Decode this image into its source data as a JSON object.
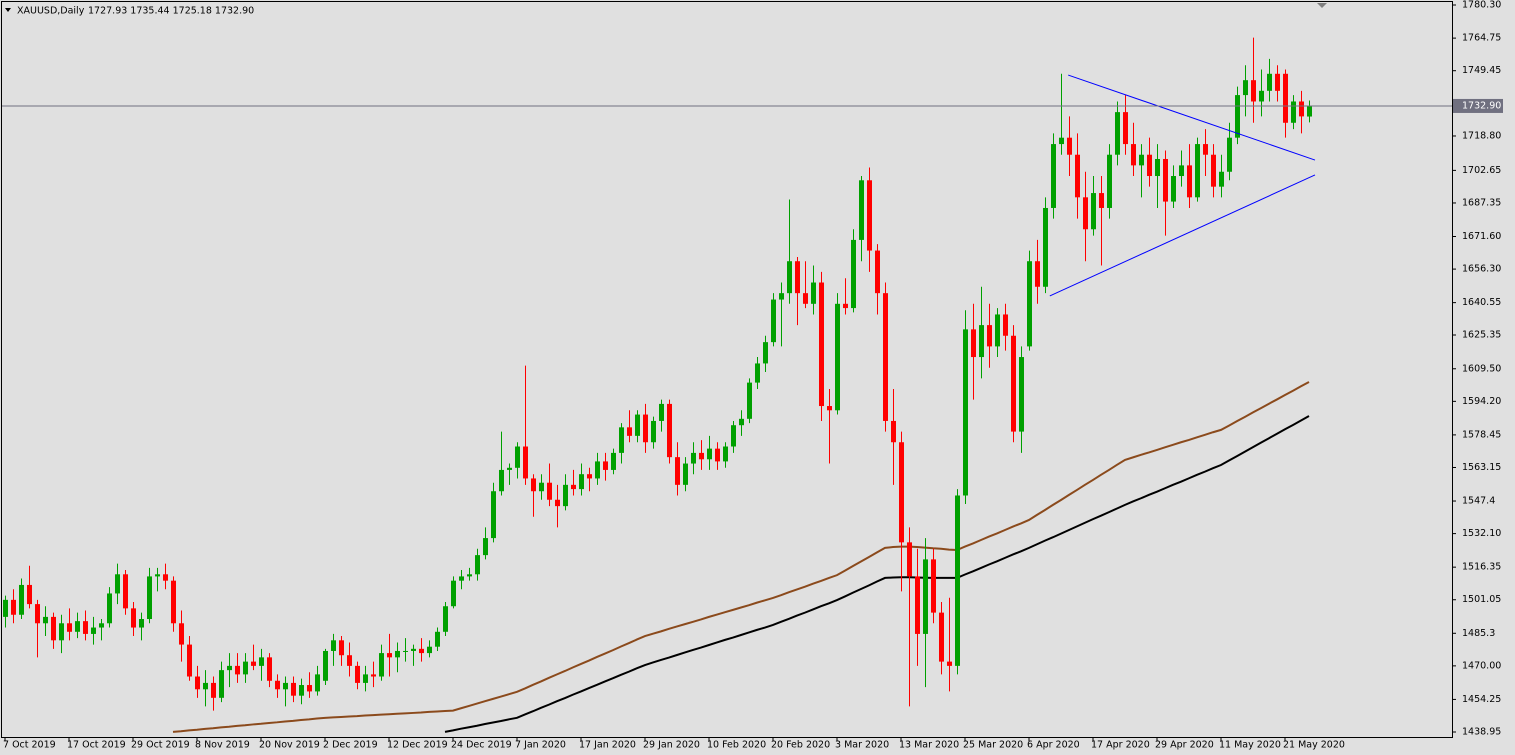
{
  "chart_data": {
    "type": "candlestick",
    "title": "XAUUSD,Daily",
    "header_values": "1727.93 1735.44 1725.18 1732.90",
    "up_color": "#00a000",
    "down_color": "#ff0000",
    "categories": [
      "7 Oct 2019",
      null,
      null,
      null,
      null,
      null,
      null,
      null,
      "17 Oct 2019",
      null,
      null,
      null,
      null,
      null,
      null,
      null,
      "29 Oct 2019",
      null,
      null,
      null,
      null,
      null,
      null,
      null,
      "8 Nov 2019",
      null,
      null,
      null,
      null,
      null,
      null,
      null,
      "20 Nov 2019",
      null,
      null,
      null,
      null,
      null,
      null,
      null,
      "2 Dec 2019",
      null,
      null,
      null,
      null,
      null,
      null,
      null,
      "12 Dec 2019",
      null,
      null,
      null,
      null,
      null,
      null,
      null,
      "24 Dec 2019",
      null,
      null,
      null,
      null,
      null,
      null,
      null,
      "7 Jan 2020",
      null,
      null,
      null,
      null,
      null,
      null,
      null,
      "17 Jan 2020",
      null,
      null,
      null,
      null,
      null,
      null,
      null,
      "29 Jan 2020",
      null,
      null,
      null,
      null,
      null,
      null,
      null,
      "10 Feb 2020",
      null,
      null,
      null,
      null,
      null,
      null,
      null,
      "20 Feb 2020",
      null,
      null,
      null,
      null,
      null,
      null,
      null,
      "3 Mar 2020",
      null,
      null,
      null,
      null,
      null,
      null,
      null,
      "13 Mar 2020",
      null,
      null,
      null,
      null,
      null,
      null,
      null,
      "25 Mar 2020",
      null,
      null,
      null,
      null,
      null,
      null,
      null,
      "6 Apr 2020",
      null,
      null,
      null,
      null,
      null,
      null,
      null,
      "17 Apr 2020",
      null,
      null,
      null,
      null,
      null,
      null,
      null,
      "29 Apr 2020",
      null,
      null,
      null,
      null,
      null,
      null,
      null,
      "11 May 2020",
      null,
      null,
      null,
      null,
      null,
      null,
      null,
      "21 May 2020",
      null,
      null,
      null
    ],
    "open": [
      1493,
      1501,
      1494,
      1508,
      1499,
      1490,
      1493,
      1482,
      1490,
      1486,
      1491,
      1485,
      1488,
      1490,
      1504,
      1513,
      1497,
      1488,
      1492,
      1512,
      1513,
      1510,
      1490,
      1480,
      1465,
      1459,
      1462,
      1455,
      1468,
      1470,
      1466,
      1472,
      1470,
      1474,
      1463,
      1459,
      1462,
      1456,
      1461,
      1458,
      1463,
      1477,
      1482,
      1475,
      1470,
      1462,
      1466,
      1465,
      1476,
      1474,
      1477,
      1477,
      1478,
      1476,
      1479,
      1486,
      1498,
      1510,
      1512,
      1513,
      1522,
      1530,
      1552,
      1562,
      1563,
      1573,
      1558,
      1552,
      1556,
      1548,
      1545,
      1555,
      1553,
      1560,
      1558,
      1566,
      1562,
      1570,
      1582,
      1578,
      1588,
      1575,
      1585,
      1593,
      1568,
      1555,
      1565,
      1570,
      1567,
      1572,
      1566,
      1573,
      1583,
      1586,
      1603,
      1612,
      1622,
      1642,
      1645,
      1660,
      1645,
      1640,
      1650,
      1592,
      1590,
      1640,
      1638,
      1670,
      1698,
      1665,
      1645,
      1585,
      1575,
      1528,
      1512,
      1485,
      1520,
      1495,
      1472,
      1470,
      1550,
      1628,
      1615,
      1630,
      1620,
      1635,
      1625,
      1580,
      1620,
      1660,
      1648,
      1685,
      1715,
      1718,
      1710,
      1690,
      1675,
      1692,
      1685,
      1710,
      1730,
      1715,
      1705,
      1710,
      1700,
      1708,
      1688,
      1700,
      1705,
      1690,
      1715,
      1710,
      1695,
      1702,
      1718,
      1738,
      1745,
      1735,
      1740,
      1748,
      1748,
      1725,
      1735,
      1727.93
    ],
    "high": [
      1503,
      1506,
      1511,
      1517,
      1501,
      1498,
      1495,
      1494,
      1497,
      1495,
      1496,
      1493,
      1492,
      1507,
      1518,
      1515,
      1500,
      1495,
      1516,
      1516,
      1518,
      1512,
      1496,
      1484,
      1470,
      1468,
      1465,
      1472,
      1476,
      1476,
      1476,
      1480,
      1478,
      1476,
      1466,
      1465,
      1465,
      1464,
      1467,
      1470,
      1478,
      1485,
      1484,
      1481,
      1472,
      1470,
      1472,
      1480,
      1485,
      1481,
      1483,
      1480,
      1483,
      1482,
      1488,
      1500,
      1512,
      1515,
      1516,
      1525,
      1535,
      1556,
      1580,
      1565,
      1575,
      1611,
      1560,
      1560,
      1565,
      1555,
      1560,
      1562,
      1565,
      1563,
      1570,
      1570,
      1572,
      1584,
      1590,
      1590,
      1593,
      1587,
      1595,
      1595,
      1575,
      1568,
      1575,
      1576,
      1578,
      1575,
      1575,
      1585,
      1590,
      1605,
      1615,
      1625,
      1645,
      1650,
      1689,
      1662,
      1660,
      1658,
      1655,
      1600,
      1645,
      1652,
      1675,
      1700,
      1704,
      1668,
      1650,
      1600,
      1580,
      1535,
      1525,
      1530,
      1525,
      1500,
      1502,
      1553,
      1637,
      1640,
      1648,
      1640,
      1638,
      1640,
      1630,
      1620,
      1665,
      1670,
      1690,
      1720,
      1748,
      1728,
      1720,
      1702,
      1700,
      1700,
      1715,
      1735,
      1738,
      1725,
      1715,
      1718,
      1715,
      1712,
      1705,
      1712,
      1715,
      1718,
      1722,
      1715,
      1710,
      1725,
      1742,
      1752,
      1765,
      1750,
      1755,
      1752,
      1750,
      1738,
      1740,
      1735.44
    ],
    "low": [
      1488,
      1490,
      1492,
      1497,
      1474,
      1484,
      1478,
      1476,
      1482,
      1483,
      1482,
      1480,
      1482,
      1488,
      1499,
      1494,
      1484,
      1482,
      1490,
      1505,
      1506,
      1486,
      1472,
      1463,
      1455,
      1451,
      1449,
      1453,
      1460,
      1462,
      1462,
      1468,
      1463,
      1460,
      1455,
      1451,
      1453,
      1452,
      1455,
      1456,
      1461,
      1470,
      1470,
      1465,
      1459,
      1458,
      1460,
      1463,
      1465,
      1467,
      1472,
      1470,
      1472,
      1474,
      1477,
      1484,
      1497,
      1506,
      1510,
      1510,
      1520,
      1528,
      1550,
      1555,
      1558,
      1555,
      1540,
      1548,
      1545,
      1535,
      1543,
      1550,
      1550,
      1552,
      1555,
      1557,
      1560,
      1565,
      1575,
      1575,
      1570,
      1572,
      1580,
      1565,
      1550,
      1552,
      1560,
      1562,
      1562,
      1562,
      1563,
      1570,
      1578,
      1584,
      1600,
      1608,
      1620,
      1620,
      1640,
      1630,
      1638,
      1635,
      1585,
      1565,
      1588,
      1635,
      1636,
      1660,
      1655,
      1635,
      1580,
      1555,
      1505,
      1451,
      1470,
      1460,
      1490,
      1466,
      1458,
      1466,
      1546,
      1595,
      1605,
      1610,
      1615,
      1618,
      1575,
      1570,
      1618,
      1640,
      1645,
      1680,
      1710,
      1700,
      1680,
      1660,
      1672,
      1658,
      1680,
      1705,
      1710,
      1700,
      1690,
      1695,
      1685,
      1672,
      1685,
      1695,
      1685,
      1688,
      1700,
      1690,
      1690,
      1698,
      1715,
      1728,
      1725,
      1728,
      1735,
      1735,
      1718,
      1722,
      1720,
      1725.18
    ],
    "close": [
      1501,
      1494,
      1508,
      1499,
      1490,
      1493,
      1482,
      1490,
      1486,
      1491,
      1485,
      1488,
      1490,
      1504,
      1513,
      1497,
      1488,
      1492,
      1512,
      1513,
      1510,
      1490,
      1480,
      1465,
      1459,
      1462,
      1455,
      1468,
      1470,
      1466,
      1472,
      1470,
      1474,
      1463,
      1459,
      1462,
      1456,
      1461,
      1458,
      1466,
      1477,
      1482,
      1475,
      1470,
      1462,
      1466,
      1465,
      1476,
      1474,
      1477,
      1477,
      1478,
      1476,
      1479,
      1486,
      1498,
      1510,
      1512,
      1513,
      1522,
      1530,
      1552,
      1562,
      1563,
      1573,
      1558,
      1552,
      1556,
      1548,
      1545,
      1555,
      1553,
      1560,
      1558,
      1566,
      1562,
      1570,
      1582,
      1578,
      1588,
      1575,
      1585,
      1593,
      1568,
      1555,
      1565,
      1570,
      1567,
      1572,
      1566,
      1573,
      1583,
      1586,
      1603,
      1612,
      1622,
      1642,
      1645,
      1660,
      1645,
      1640,
      1650,
      1592,
      1590,
      1640,
      1638,
      1670,
      1698,
      1665,
      1645,
      1585,
      1575,
      1528,
      1512,
      1485,
      1520,
      1495,
      1472,
      1470,
      1550,
      1628,
      1615,
      1630,
      1620,
      1635,
      1625,
      1580,
      1615,
      1660,
      1648,
      1685,
      1715,
      1718,
      1710,
      1690,
      1675,
      1692,
      1685,
      1710,
      1730,
      1715,
      1705,
      1710,
      1700,
      1708,
      1688,
      1700,
      1705,
      1690,
      1715,
      1710,
      1695,
      1702,
      1718,
      1738,
      1745,
      1735,
      1740,
      1748,
      1740,
      1725,
      1735,
      1728,
      1732.9
    ],
    "moving_averages": [
      {
        "color": "#8b4a1c",
        "values": [
          null,
          null,
          null,
          null,
          null,
          null,
          null,
          null,
          null,
          null,
          null,
          null,
          null,
          null,
          null,
          null,
          null,
          null,
          null,
          null,
          null,
          1439.0,
          1439.3,
          1439.7,
          1440.0,
          1440.4,
          1440.7,
          1441.1,
          1441.4,
          1441.8,
          1442.1,
          1442.5,
          1442.8,
          1443.2,
          1443.5,
          1443.9,
          1444.2,
          1444.6,
          1444.9,
          1445.3,
          1445.6,
          1445.8,
          1446.0,
          1446.2,
          1446.4,
          1446.7,
          1446.9,
          1447.1,
          1447.3,
          1447.5,
          1447.7,
          1447.9,
          1448.1,
          1448.4,
          1448.6,
          1448.8,
          1449.0,
          1450.1,
          1451.2,
          1452.3,
          1453.4,
          1454.5,
          1455.6,
          1456.7,
          1457.8,
          1459.4,
          1461.1,
          1462.7,
          1464.4,
          1466.0,
          1467.6,
          1469.3,
          1470.9,
          1472.5,
          1474.2,
          1475.8,
          1477.4,
          1479.1,
          1480.7,
          1482.4,
          1484.0,
          1485.1,
          1486.2,
          1487.4,
          1488.5,
          1489.6,
          1490.7,
          1491.8,
          1493.0,
          1494.1,
          1495.2,
          1496.3,
          1497.4,
          1498.5,
          1499.7,
          1500.8,
          1501.9,
          1503.2,
          1504.6,
          1505.9,
          1507.2,
          1508.6,
          1509.9,
          1511.3,
          1512.6,
          1514.7,
          1516.9,
          1519.0,
          1521.1,
          1523.3,
          1525.4,
          1525.8,
          1526.0,
          1526.0,
          1525.8,
          1525.5,
          1525.2,
          1525.0,
          1524.6,
          1524.4,
          1526.0,
          1527.5,
          1529.1,
          1530.7,
          1532.2,
          1533.8,
          1535.4,
          1536.9,
          1538.5,
          1540.9,
          1543.2,
          1545.6,
          1547.9,
          1550.3,
          1552.6,
          1555.0,
          1557.3,
          1559.7,
          1562.0,
          1564.4,
          1566.7,
          1567.9,
          1569.1,
          1570.2,
          1571.4,
          1572.6,
          1573.8,
          1575.0,
          1576.1,
          1577.3,
          1578.5,
          1579.7,
          1580.8,
          1582.8,
          1584.9,
          1586.9,
          1589.0,
          1591.0,
          1593.1,
          1595.1,
          1597.2,
          1599.2,
          1601.3,
          1603.3
        ]
      },
      {
        "color": "#000000",
        "values": [
          null,
          null,
          null,
          null,
          null,
          null,
          null,
          null,
          null,
          null,
          null,
          null,
          null,
          null,
          null,
          null,
          null,
          null,
          null,
          null,
          null,
          null,
          null,
          null,
          null,
          null,
          null,
          null,
          null,
          null,
          null,
          null,
          null,
          null,
          null,
          null,
          null,
          null,
          null,
          null,
          null,
          null,
          null,
          null,
          null,
          null,
          null,
          null,
          null,
          null,
          null,
          null,
          null,
          null,
          null,
          1439.0,
          1439.7,
          1440.5,
          1441.2,
          1441.9,
          1442.7,
          1443.4,
          1444.1,
          1444.9,
          1445.6,
          1447.2,
          1448.7,
          1450.3,
          1451.8,
          1453.4,
          1454.9,
          1456.5,
          1458.0,
          1459.6,
          1461.1,
          1462.7,
          1464.2,
          1465.8,
          1467.3,
          1468.9,
          1470.4,
          1471.6,
          1472.8,
          1473.9,
          1475.1,
          1476.3,
          1477.5,
          1478.6,
          1479.8,
          1481.0,
          1482.2,
          1483.3,
          1484.5,
          1485.7,
          1486.9,
          1488.0,
          1489.2,
          1490.7,
          1492.1,
          1493.6,
          1495.0,
          1496.5,
          1498.0,
          1499.4,
          1500.9,
          1502.6,
          1504.4,
          1506.1,
          1507.8,
          1509.6,
          1511.3,
          1511.5,
          1511.6,
          1511.6,
          1511.5,
          1511.4,
          1511.3,
          1511.3,
          1511.3,
          1511.3,
          1512.9,
          1514.4,
          1516.0,
          1517.6,
          1519.1,
          1520.7,
          1522.3,
          1523.8,
          1525.4,
          1527.1,
          1528.8,
          1530.4,
          1532.1,
          1533.8,
          1535.5,
          1537.2,
          1538.9,
          1540.5,
          1542.2,
          1543.9,
          1545.6,
          1547.2,
          1548.7,
          1550.3,
          1551.8,
          1553.4,
          1555.0,
          1556.5,
          1558.1,
          1559.7,
          1561.2,
          1562.8,
          1564.3,
          1566.4,
          1568.5,
          1570.6,
          1572.7,
          1574.8,
          1576.9,
          1579.0,
          1581.1,
          1583.1,
          1585.2,
          1587.3
        ]
      }
    ],
    "trendlines": [
      {
        "color": "#0000ff",
        "x": [
          132.9,
          163.75
        ],
        "y": [
          1747.4,
          1707.5
        ]
      },
      {
        "color": "#0000ff",
        "x": [
          130.6,
          163.75
        ],
        "y": [
          1643.7,
          1700.5
        ]
      }
    ],
    "price_line": {
      "value": 1732.9,
      "label": "1732.90"
    },
    "ylim": [
      1438.95,
      1780.3
    ],
    "yticks": [
      {
        "value": 1780.3,
        "label": "1780.30"
      },
      1764.75,
      1749.45,
      {
        "value": 1718.8,
        "label": "1718.80"
      },
      1702.65,
      1687.35,
      {
        "value": 1671.6,
        "label": "1671.60"
      },
      {
        "value": 1656.3,
        "label": "1656.30"
      },
      1640.55,
      1625.35,
      {
        "value": 1609.5,
        "label": "1609.50"
      },
      {
        "value": 1594.2,
        "label": "1594.20"
      },
      1578.45,
      1563.15,
      1547.4,
      {
        "value": 1532.1,
        "label": "1532.10"
      },
      1516.35,
      1501.05,
      1485.3,
      {
        "value": 1470,
        "label": "1470.00"
      },
      1454.25,
      1438.95
    ]
  }
}
